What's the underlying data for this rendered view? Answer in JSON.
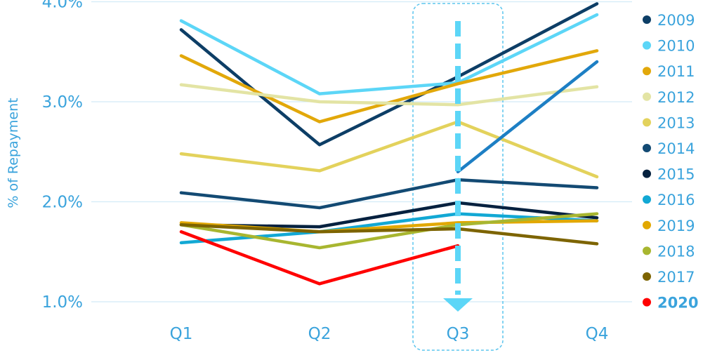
{
  "chart_data": {
    "type": "line",
    "title": "",
    "xlabel": "",
    "ylabel": "% of Repayment",
    "categories": [
      "Q1",
      "Q2",
      "Q3",
      "Q4"
    ],
    "y_ticks": [
      "1.0%",
      "2.0%",
      "3.0%",
      "4.0%"
    ],
    "ylim": [
      0.9,
      4.0
    ],
    "grid": true,
    "legend_position": "right",
    "highlight_category": "Q3",
    "series": [
      {
        "name": "2009",
        "color": "#0d3e66",
        "values": [
          3.72,
          2.57,
          3.25,
          3.98
        ]
      },
      {
        "name": "2010",
        "color": "#5cd6f7",
        "values": [
          3.81,
          3.08,
          3.19,
          3.87
        ]
      },
      {
        "name": "2011",
        "color": "#e2a80a",
        "values": [
          3.46,
          2.8,
          3.18,
          3.51
        ]
      },
      {
        "name": "2012",
        "color": "#e3e4a4",
        "values": [
          3.17,
          3.0,
          2.97,
          3.15
        ]
      },
      {
        "name": "2013",
        "color": "#e3d25c",
        "values": [
          2.48,
          2.31,
          2.8,
          2.25
        ]
      },
      {
        "name": "2014",
        "color": "#134a73",
        "values": [
          2.09,
          1.94,
          2.22,
          2.14
        ]
      },
      {
        "name": "2015",
        "color": "#05213f",
        "values": [
          1.77,
          1.75,
          1.99,
          1.84
        ]
      },
      {
        "name": "2016",
        "color": "#12a8d4",
        "values": [
          1.59,
          1.7,
          1.88,
          1.81
        ]
      },
      {
        "name": "2019",
        "color": "#e2a800",
        "values": [
          1.79,
          1.7,
          1.79,
          1.81
        ]
      },
      {
        "name": "2018",
        "color": "#a8b630",
        "values": [
          1.77,
          1.54,
          1.77,
          1.88
        ]
      },
      {
        "name": "2017",
        "color": "#7d6400",
        "values": [
          1.77,
          1.7,
          1.73,
          1.58
        ]
      },
      {
        "name": "2020",
        "color": "#ff0000",
        "values": [
          1.7,
          1.18,
          1.56,
          null
        ],
        "bold": true
      }
    ],
    "extra_line": {
      "color": "#1d7fc4",
      "from": {
        "x": "Q3",
        "y": 2.3
      },
      "to": {
        "x": "Q4",
        "y": 3.4
      }
    }
  }
}
